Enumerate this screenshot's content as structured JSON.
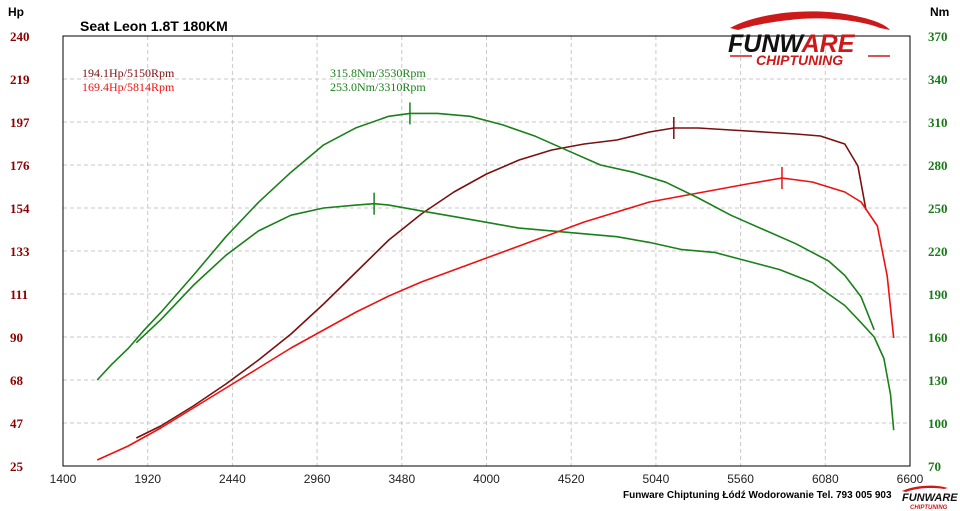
{
  "chart_data": {
    "type": "line",
    "title": "Seat Leon 1.8T 180KM",
    "left_axis": {
      "unit": "Hp",
      "range": [
        25,
        240
      ],
      "ticks": [
        "240",
        "219",
        "197",
        "176",
        "154",
        "133",
        "111",
        "90",
        "68",
        "47",
        "25"
      ]
    },
    "right_axis": {
      "unit": "Nm",
      "range": [
        70,
        370
      ],
      "ticks": [
        "370",
        "340",
        "310",
        "280",
        "250",
        "220",
        "190",
        "160",
        "130",
        "100",
        "70"
      ]
    },
    "x_axis": {
      "range": [
        1400,
        6600
      ],
      "ticks": [
        "1400",
        "1920",
        "2440",
        "2960",
        "3480",
        "4000",
        "4520",
        "5040",
        "5560",
        "6080",
        "6600"
      ]
    },
    "grid": true,
    "annotations": {
      "power_after": "194.1Hp/5150Rpm",
      "power_before": "169.4Hp/5814Rpm",
      "torque_after": "315.8Nm/3530Rpm",
      "torque_before": "253.0Nm/3310Rpm"
    },
    "series": [
      {
        "axis": "left",
        "color": "#7a1010",
        "peak_rpm": 5150,
        "x": [
          1850,
          2000,
          2200,
          2400,
          2600,
          2800,
          3000,
          3200,
          3400,
          3600,
          3800,
          4000,
          4200,
          4400,
          4600,
          4800,
          5000,
          5150,
          5300,
          5500,
          5700,
          5900,
          6050,
          6200,
          6280,
          6330
        ],
        "y": [
          39,
          45,
          55,
          66,
          78,
          91,
          106,
          122,
          138,
          151,
          162,
          171,
          178,
          183,
          186,
          188,
          192,
          194,
          194,
          193,
          192,
          191,
          190,
          186,
          175,
          153
        ]
      },
      {
        "axis": "left",
        "color": "#ee1111",
        "peak_rpm": 5814,
        "x": [
          1610,
          1800,
          2000,
          2200,
          2400,
          2600,
          2800,
          3000,
          3200,
          3400,
          3600,
          3800,
          4000,
          4200,
          4400,
          4600,
          4800,
          5000,
          5200,
          5400,
          5600,
          5814,
          6000,
          6200,
          6300,
          6400,
          6460,
          6500
        ],
        "y": [
          28,
          35,
          44,
          54,
          64,
          74,
          84,
          93,
          102,
          110,
          117,
          123,
          129,
          135,
          141,
          147,
          152,
          157,
          160,
          163,
          166,
          169,
          167,
          162,
          157,
          145,
          120,
          89
        ]
      },
      {
        "axis": "right",
        "color": "#1a801a",
        "peak_rpm": 3530,
        "x": [
          1610,
          1700,
          1800,
          1900,
          2000,
          2200,
          2400,
          2600,
          2800,
          3000,
          3200,
          3400,
          3530,
          3700,
          3900,
          4100,
          4300,
          4500,
          4700,
          4900,
          5100,
          5300,
          5500,
          5700,
          5900,
          6100,
          6200,
          6300,
          6380
        ],
        "y": [
          130,
          141,
          152,
          165,
          177,
          203,
          230,
          254,
          275,
          294,
          306,
          314,
          316,
          316,
          314,
          308,
          300,
          290,
          280,
          275,
          268,
          257,
          245,
          235,
          225,
          213,
          203,
          188,
          165
        ]
      },
      {
        "axis": "right",
        "color": "#1a801a",
        "peak_rpm": 3310,
        "x": [
          1850,
          2000,
          2200,
          2400,
          2600,
          2800,
          3000,
          3200,
          3310,
          3400,
          3600,
          3800,
          4000,
          4200,
          4400,
          4600,
          4800,
          5000,
          5200,
          5400,
          5600,
          5800,
          6000,
          6200,
          6300,
          6380,
          6440,
          6480,
          6500
        ],
        "y": [
          156,
          172,
          196,
          217,
          234,
          245,
          250,
          252,
          253,
          252,
          248,
          244,
          240,
          236,
          234,
          232,
          230,
          226,
          221,
          219,
          213,
          207,
          198,
          182,
          170,
          160,
          145,
          120,
          95
        ]
      }
    ]
  },
  "brand": {
    "name_black": "FUNW",
    "name_red": "ARE",
    "subtitle": "CHIPTUNING"
  },
  "mini_brand": {
    "name": "FUNWARE",
    "subtitle": "CHIPTUNING"
  },
  "footer": "Funware Chiptuning Łódź Wodorowanie Tel. 793 005 903"
}
